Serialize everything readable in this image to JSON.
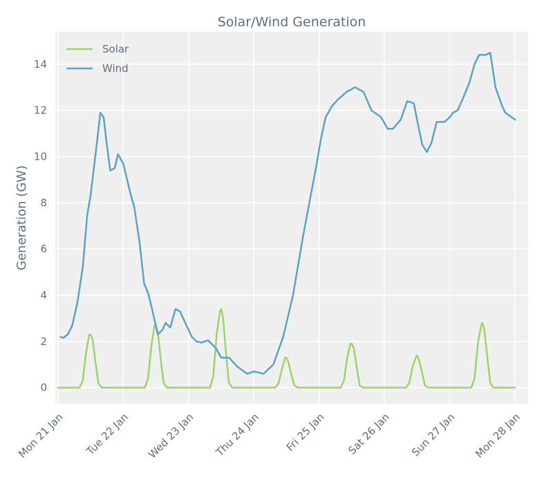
{
  "chart_data": {
    "type": "line",
    "title": "Solar/Wind Generation",
    "xlabel": "",
    "ylabel": "Generation (GW)",
    "ylim": [
      -0.7,
      15.4
    ],
    "xlim": [
      -0.04,
      7.2
    ],
    "yticks": [
      0,
      2,
      4,
      6,
      8,
      10,
      12,
      14
    ],
    "xticks": [
      {
        "x": 0,
        "label": "Mon 21 Jan"
      },
      {
        "x": 1,
        "label": "Tue 22 Jan"
      },
      {
        "x": 2,
        "label": "Wed 23 Jan"
      },
      {
        "x": 3,
        "label": "Thu 24 Jan"
      },
      {
        "x": 4,
        "label": "Fri 25 Jan"
      },
      {
        "x": 5,
        "label": "Sat 26 Jan"
      },
      {
        "x": 6,
        "label": "Sun 27 Jan"
      },
      {
        "x": 7,
        "label": "Mon 28 Jan"
      }
    ],
    "legend_position": "top-left",
    "colors": {
      "Solar": "#9cd36a",
      "Wind": "#5aa2c8",
      "background": "#f0f0f0",
      "grid": "#ffffff"
    },
    "series": [
      {
        "name": "Solar",
        "x": [
          0,
          0.33,
          0.38,
          0.43,
          0.48,
          0.5,
          0.53,
          0.58,
          0.62,
          0.67,
          1,
          1.33,
          1.38,
          1.43,
          1.48,
          1.5,
          1.53,
          1.58,
          1.62,
          1.67,
          2,
          2.33,
          2.38,
          2.43,
          2.48,
          2.5,
          2.53,
          2.58,
          2.62,
          2.67,
          3,
          3.33,
          3.38,
          3.43,
          3.48,
          3.5,
          3.53,
          3.58,
          3.62,
          3.67,
          4,
          4.33,
          4.38,
          4.43,
          4.48,
          4.5,
          4.53,
          4.58,
          4.62,
          4.67,
          5,
          5.33,
          5.38,
          5.43,
          5.48,
          5.5,
          5.53,
          5.58,
          5.62,
          5.67,
          6,
          6.33,
          6.38,
          6.43,
          6.48,
          6.5,
          6.53,
          6.58,
          6.62,
          6.67,
          7
        ],
        "y": [
          0,
          0,
          0.3,
          1.5,
          2.3,
          2.3,
          2.1,
          1.0,
          0.2,
          0,
          0,
          0,
          0.4,
          1.8,
          2.7,
          2.7,
          2.4,
          1.1,
          0.2,
          0,
          0,
          0,
          0.5,
          2.3,
          3.3,
          3.4,
          3.0,
          1.3,
          0.2,
          0,
          0,
          0,
          0.2,
          0.8,
          1.3,
          1.3,
          1.1,
          0.5,
          0.1,
          0,
          0,
          0,
          0.3,
          1.3,
          1.9,
          1.9,
          1.7,
          0.8,
          0.1,
          0,
          0,
          0,
          0.2,
          0.9,
          1.3,
          1.4,
          1.2,
          0.6,
          0.1,
          0,
          0,
          0,
          0.4,
          1.9,
          2.7,
          2.8,
          2.5,
          1.2,
          0.2,
          0,
          0
        ]
      },
      {
        "name": "Wind",
        "x": [
          0.04,
          0.08,
          0.15,
          0.22,
          0.3,
          0.38,
          0.45,
          0.5,
          0.58,
          0.65,
          0.7,
          0.75,
          0.8,
          0.87,
          0.92,
          1.0,
          1.06,
          1.12,
          1.17,
          1.25,
          1.32,
          1.38,
          1.45,
          1.53,
          1.6,
          1.65,
          1.72,
          1.8,
          1.87,
          1.95,
          2.05,
          2.12,
          2.2,
          2.3,
          2.42,
          2.5,
          2.62,
          2.75,
          2.9,
          3.0,
          3.15,
          3.3,
          3.45,
          3.6,
          3.75,
          3.85,
          3.95,
          4.03,
          4.1,
          4.2,
          4.3,
          4.42,
          4.55,
          4.68,
          4.8,
          4.95,
          5.05,
          5.13,
          5.25,
          5.35,
          5.45,
          5.52,
          5.58,
          5.65,
          5.72,
          5.8,
          5.92,
          6.0,
          6.05,
          6.12,
          6.2,
          6.3,
          6.38,
          6.45,
          6.55,
          6.62,
          6.7,
          6.8,
          6.85,
          6.95,
          7.0
        ],
        "y": [
          2.2,
          2.15,
          2.3,
          2.7,
          3.7,
          5.2,
          7.5,
          8.3,
          10.2,
          11.9,
          11.7,
          10.5,
          9.4,
          9.5,
          10.1,
          9.7,
          9.0,
          8.3,
          7.8,
          6.3,
          4.5,
          4.1,
          3.3,
          2.3,
          2.5,
          2.8,
          2.6,
          3.4,
          3.3,
          2.8,
          2.2,
          2.0,
          1.95,
          2.05,
          1.7,
          1.3,
          1.3,
          0.9,
          0.6,
          0.7,
          0.6,
          1.0,
          2.2,
          4.0,
          6.5,
          8.0,
          9.5,
          10.8,
          11.7,
          12.2,
          12.5,
          12.8,
          13.0,
          12.8,
          12.0,
          11.7,
          11.2,
          11.2,
          11.6,
          12.4,
          12.3,
          11.3,
          10.5,
          10.2,
          10.6,
          11.5,
          11.5,
          11.7,
          11.9,
          12.0,
          12.5,
          13.2,
          14.0,
          14.4,
          14.4,
          14.5,
          13.0,
          12.2,
          11.9,
          11.7,
          11.6
        ]
      }
    ]
  }
}
